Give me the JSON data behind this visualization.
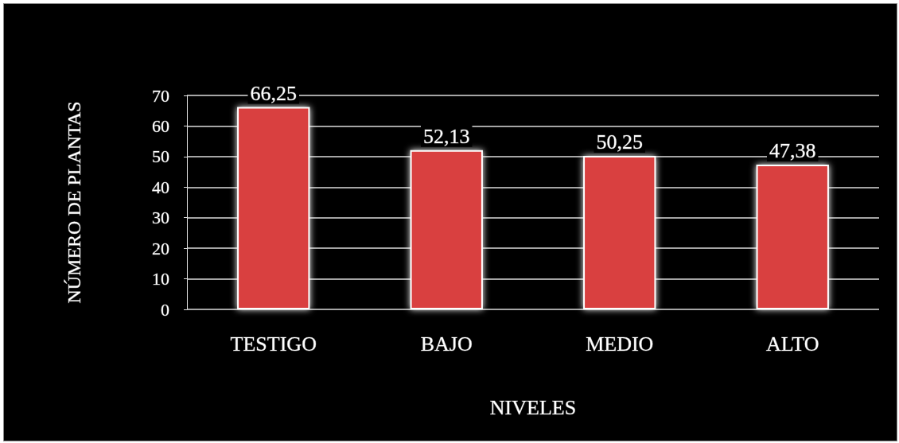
{
  "chart_data": {
    "type": "bar",
    "xlabel": "NIVELES",
    "ylabel": "NÚMERO DE PLANTAS",
    "categories": [
      "TESTIGO",
      "BAJO",
      "MEDIO",
      "ALTO"
    ],
    "values": [
      66.25,
      52.13,
      50.25,
      47.38
    ],
    "value_labels": [
      "66,25",
      "52,13",
      "50,25",
      "47,38"
    ],
    "color": "#d9403f",
    "ylim": [
      0,
      70
    ],
    "yticks": [
      0,
      10,
      20,
      30,
      40,
      50,
      60,
      70
    ],
    "grid": "y"
  }
}
